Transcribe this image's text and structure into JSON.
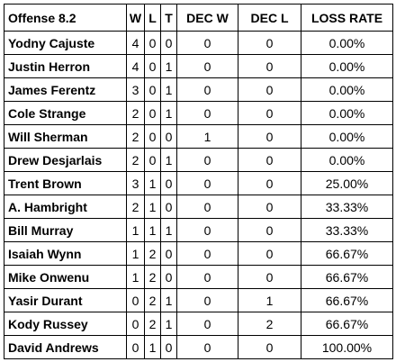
{
  "table": {
    "header": [
      "Offense 8.2",
      "W",
      "L",
      "T",
      "DEC W",
      "DEC L",
      "LOSS RATE"
    ],
    "rows": [
      [
        "Yodny Cajuste",
        "4",
        "0",
        "0",
        "0",
        "0",
        "0.00%"
      ],
      [
        "Justin Herron",
        "4",
        "0",
        "1",
        "0",
        "0",
        "0.00%"
      ],
      [
        "James Ferentz",
        "3",
        "0",
        "1",
        "0",
        "0",
        "0.00%"
      ],
      [
        "Cole Strange",
        "2",
        "0",
        "1",
        "0",
        "0",
        "0.00%"
      ],
      [
        "Will Sherman",
        "2",
        "0",
        "0",
        "1",
        "0",
        "0.00%"
      ],
      [
        "Drew Desjarlais",
        "2",
        "0",
        "1",
        "0",
        "0",
        "0.00%"
      ],
      [
        "Trent Brown",
        "3",
        "1",
        "0",
        "0",
        "0",
        "25.00%"
      ],
      [
        "A. Hambright",
        "2",
        "1",
        "0",
        "0",
        "0",
        "33.33%"
      ],
      [
        "Bill Murray",
        "1",
        "1",
        "1",
        "0",
        "0",
        "33.33%"
      ],
      [
        "Isaiah Wynn",
        "1",
        "2",
        "0",
        "0",
        "0",
        "66.67%"
      ],
      [
        "Mike Onwenu",
        "1",
        "2",
        "0",
        "0",
        "0",
        "66.67%"
      ],
      [
        "Yasir Durant",
        "0",
        "2",
        "1",
        "0",
        "1",
        "66.67%"
      ],
      [
        "Kody Russey",
        "0",
        "2",
        "1",
        "0",
        "2",
        "66.67%"
      ],
      [
        "David Andrews",
        "0",
        "1",
        "0",
        "0",
        "0",
        "100.00%"
      ]
    ]
  }
}
